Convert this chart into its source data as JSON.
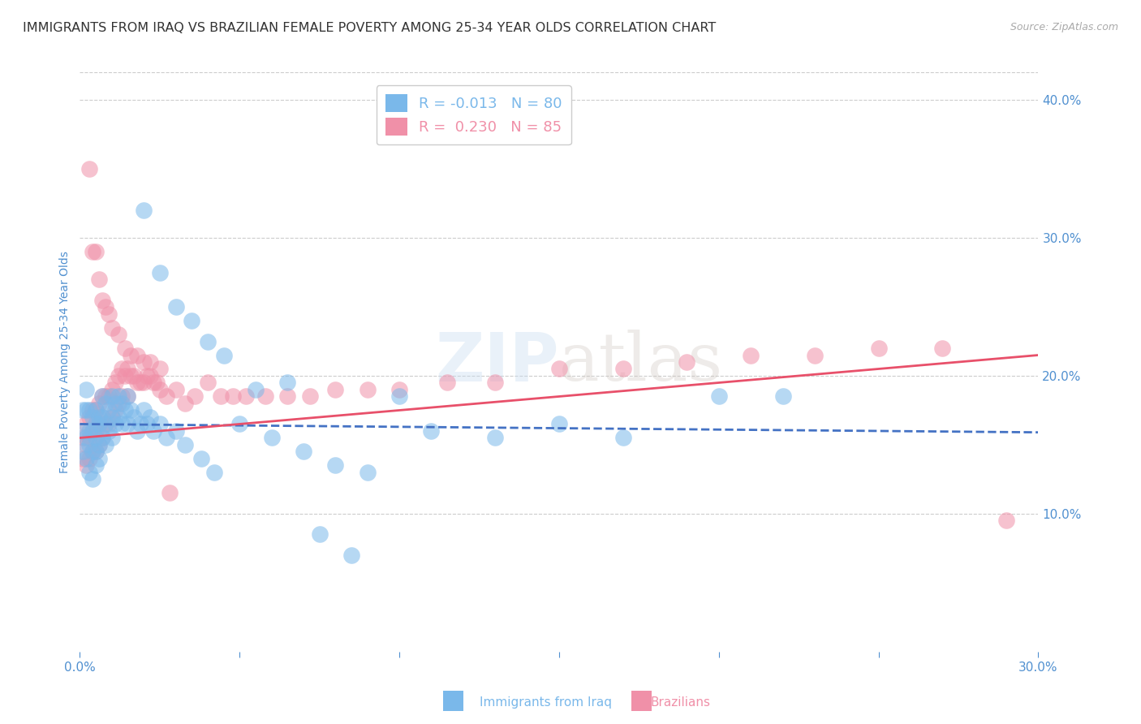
{
  "title": "IMMIGRANTS FROM IRAQ VS BRAZILIAN FEMALE POVERTY AMONG 25-34 YEAR OLDS CORRELATION CHART",
  "source": "Source: ZipAtlas.com",
  "ylabel": "Female Poverty Among 25-34 Year Olds",
  "watermark": "ZIPatlas",
  "legend_series": [
    {
      "label": "Immigrants from Iraq",
      "R": -0.013,
      "N": 80,
      "color": "#7ab8ea"
    },
    {
      "label": "Brazilians",
      "R": 0.23,
      "N": 85,
      "color": "#f090a8"
    }
  ],
  "xlim": [
    0.0,
    0.3
  ],
  "ylim": [
    -0.02,
    0.44
  ],
  "plot_ylim": [
    0.0,
    0.42
  ],
  "xticks": [
    0.0,
    0.05,
    0.1,
    0.15,
    0.2,
    0.25,
    0.3
  ],
  "xtick_labels_show": [
    "0.0%",
    "",
    "",
    "",
    "",
    "",
    "30.0%"
  ],
  "yticks_right": [
    0.1,
    0.2,
    0.3,
    0.4
  ],
  "ytick_labels_right": [
    "10.0%",
    "20.0%",
    "30.0%",
    "40.0%"
  ],
  "iraq_color": "#7ab8ea",
  "brazil_color": "#f090a8",
  "iraq_line_color": "#4472c4",
  "brazil_line_color": "#e8506a",
  "background_color": "#ffffff",
  "grid_color": "#cccccc",
  "title_color": "#333333",
  "tick_color": "#5090d0",
  "title_fontsize": 11.5,
  "source_fontsize": 9,
  "label_fontsize": 10,
  "tick_fontsize": 11,
  "legend_fontsize": 13,
  "iraq_x": [
    0.001,
    0.001,
    0.001,
    0.002,
    0.002,
    0.002,
    0.002,
    0.003,
    0.003,
    0.003,
    0.003,
    0.004,
    0.004,
    0.004,
    0.004,
    0.005,
    0.005,
    0.005,
    0.005,
    0.005,
    0.006,
    0.006,
    0.006,
    0.006,
    0.007,
    0.007,
    0.007,
    0.008,
    0.008,
    0.008,
    0.009,
    0.009,
    0.01,
    0.01,
    0.01,
    0.011,
    0.011,
    0.012,
    0.012,
    0.013,
    0.013,
    0.014,
    0.015,
    0.015,
    0.016,
    0.017,
    0.018,
    0.019,
    0.02,
    0.021,
    0.022,
    0.023,
    0.025,
    0.027,
    0.03,
    0.033,
    0.038,
    0.042,
    0.05,
    0.06,
    0.07,
    0.08,
    0.09,
    0.1,
    0.11,
    0.13,
    0.15,
    0.17,
    0.2,
    0.22,
    0.02,
    0.025,
    0.03,
    0.035,
    0.04,
    0.045,
    0.055,
    0.065,
    0.075,
    0.085
  ],
  "iraq_y": [
    0.175,
    0.16,
    0.145,
    0.19,
    0.175,
    0.155,
    0.14,
    0.175,
    0.16,
    0.15,
    0.13,
    0.17,
    0.16,
    0.145,
    0.125,
    0.175,
    0.165,
    0.155,
    0.145,
    0.135,
    0.17,
    0.165,
    0.15,
    0.14,
    0.185,
    0.17,
    0.155,
    0.18,
    0.165,
    0.15,
    0.175,
    0.16,
    0.185,
    0.17,
    0.155,
    0.18,
    0.165,
    0.185,
    0.17,
    0.18,
    0.165,
    0.175,
    0.185,
    0.165,
    0.175,
    0.17,
    0.16,
    0.165,
    0.175,
    0.165,
    0.17,
    0.16,
    0.165,
    0.155,
    0.16,
    0.15,
    0.14,
    0.13,
    0.165,
    0.155,
    0.145,
    0.135,
    0.13,
    0.185,
    0.16,
    0.155,
    0.165,
    0.155,
    0.185,
    0.185,
    0.32,
    0.275,
    0.25,
    0.24,
    0.225,
    0.215,
    0.19,
    0.195,
    0.085,
    0.07
  ],
  "brazil_x": [
    0.001,
    0.001,
    0.002,
    0.002,
    0.002,
    0.003,
    0.003,
    0.003,
    0.004,
    0.004,
    0.004,
    0.005,
    0.005,
    0.005,
    0.006,
    0.006,
    0.006,
    0.007,
    0.007,
    0.007,
    0.008,
    0.008,
    0.009,
    0.009,
    0.01,
    0.01,
    0.011,
    0.011,
    0.012,
    0.012,
    0.013,
    0.013,
    0.014,
    0.015,
    0.015,
    0.016,
    0.017,
    0.018,
    0.019,
    0.02,
    0.021,
    0.022,
    0.023,
    0.024,
    0.025,
    0.027,
    0.03,
    0.033,
    0.036,
    0.04,
    0.044,
    0.048,
    0.052,
    0.058,
    0.065,
    0.072,
    0.08,
    0.09,
    0.1,
    0.115,
    0.13,
    0.15,
    0.17,
    0.19,
    0.21,
    0.23,
    0.25,
    0.27,
    0.29,
    0.003,
    0.004,
    0.005,
    0.006,
    0.007,
    0.008,
    0.009,
    0.01,
    0.012,
    0.014,
    0.016,
    0.018,
    0.02,
    0.022,
    0.025,
    0.028
  ],
  "brazil_y": [
    0.155,
    0.14,
    0.165,
    0.15,
    0.135,
    0.17,
    0.155,
    0.14,
    0.175,
    0.16,
    0.145,
    0.175,
    0.16,
    0.145,
    0.18,
    0.165,
    0.15,
    0.185,
    0.17,
    0.155,
    0.185,
    0.165,
    0.185,
    0.165,
    0.19,
    0.17,
    0.195,
    0.175,
    0.2,
    0.18,
    0.205,
    0.185,
    0.2,
    0.205,
    0.185,
    0.2,
    0.2,
    0.195,
    0.195,
    0.195,
    0.2,
    0.2,
    0.195,
    0.195,
    0.19,
    0.185,
    0.19,
    0.18,
    0.185,
    0.195,
    0.185,
    0.185,
    0.185,
    0.185,
    0.185,
    0.185,
    0.19,
    0.19,
    0.19,
    0.195,
    0.195,
    0.205,
    0.205,
    0.21,
    0.215,
    0.215,
    0.22,
    0.22,
    0.095,
    0.35,
    0.29,
    0.29,
    0.27,
    0.255,
    0.25,
    0.245,
    0.235,
    0.23,
    0.22,
    0.215,
    0.215,
    0.21,
    0.21,
    0.205,
    0.115
  ]
}
